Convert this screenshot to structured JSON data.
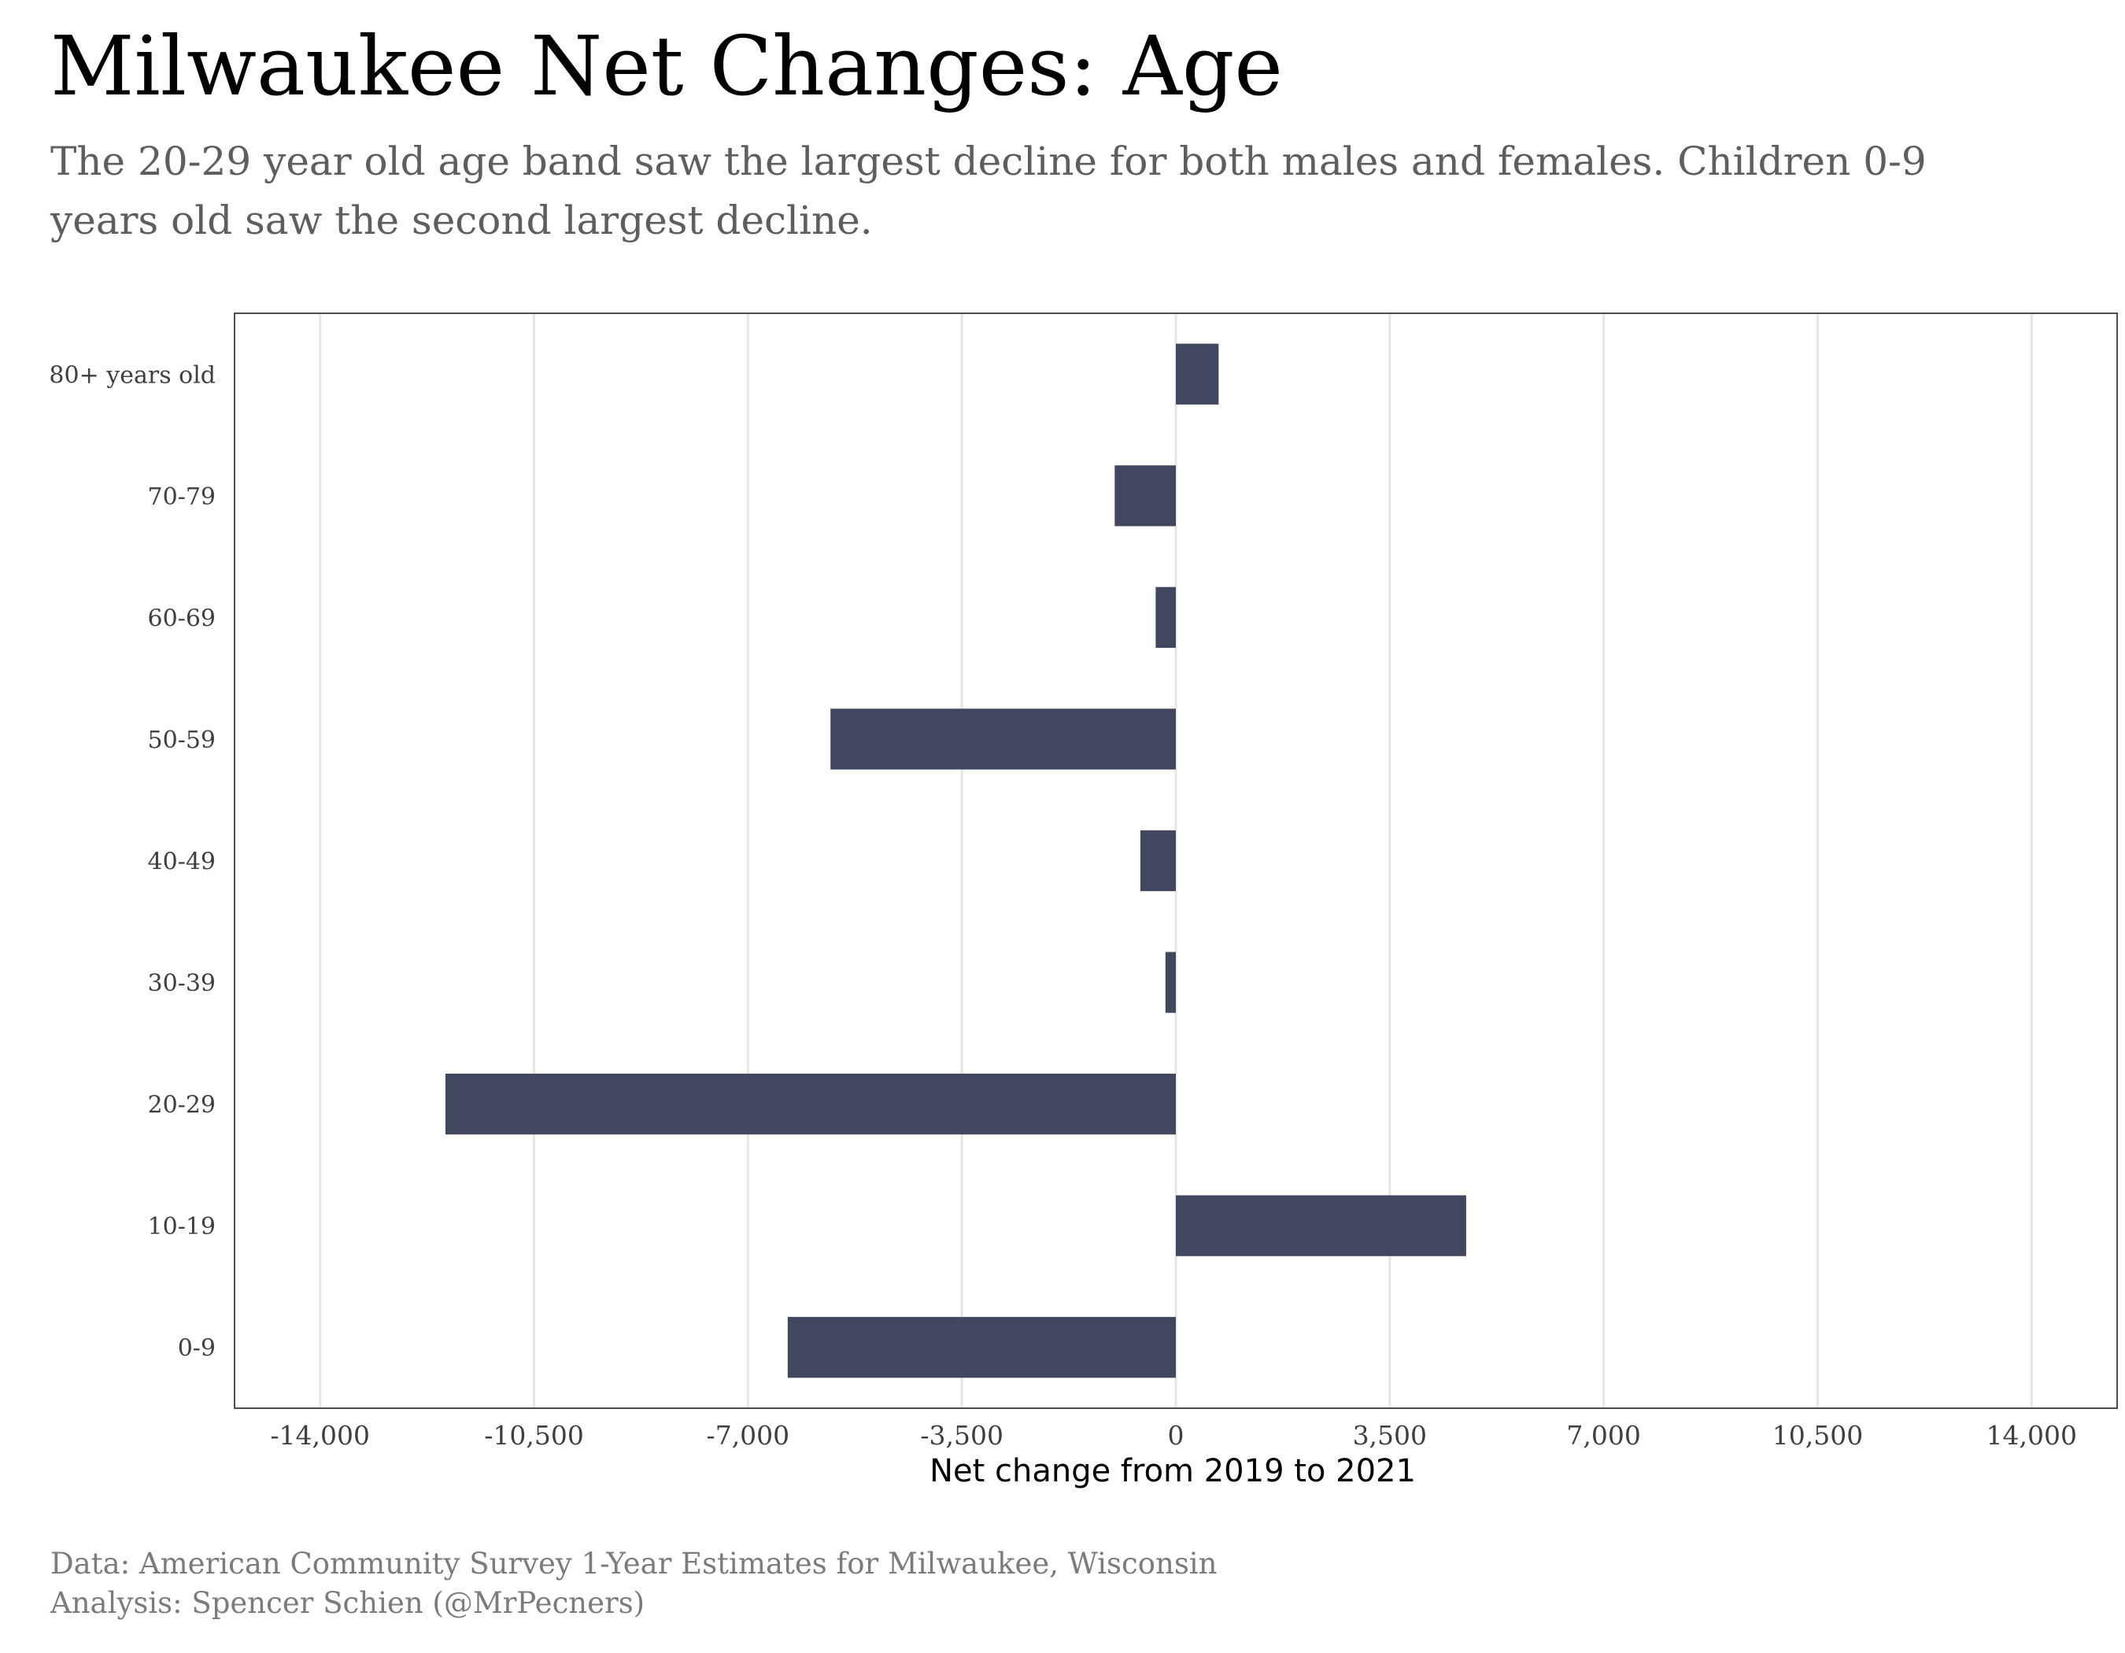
{
  "title": "Milwaukee Net Changes: Age",
  "subtitle": "The 20-29 year old age band saw the largest decline for both males and females. Children 0-9 years old saw the second largest decline.",
  "caption": {
    "line1": "Data: American Community Survey 1-Year Estimates for Milwaukee, Wisconsin",
    "line2": "Analysis: Spencer Schien (@MrPecners)"
  },
  "colors": {
    "bar": "#424760",
    "grid": "#e6e6e6",
    "axis_text": "#3f3f3f",
    "panel_border": "#4d4d4d"
  },
  "chart_data": {
    "type": "bar",
    "orientation": "horizontal",
    "categories": [
      "80+ years old",
      "70-79",
      "60-69",
      "50-59",
      "40-49",
      "30-39",
      "20-29",
      "10-19",
      "0-9"
    ],
    "values": [
      700,
      -1000,
      -330,
      -5650,
      -580,
      -170,
      -11950,
      4750,
      -6350
    ],
    "xlabel": "Net change from 2019 to 2021",
    "ylabel": "",
    "xlim": [
      -15400,
      15400
    ],
    "xticks": [
      -14000,
      -10500,
      -7000,
      -3500,
      0,
      3500,
      7000,
      10500,
      14000
    ],
    "xtick_labels": [
      "-14,000",
      "-10,500",
      "-7,000",
      "-3,500",
      "0",
      "3,500",
      "7,000",
      "10,500",
      "14,000"
    ],
    "grid": "vertical major",
    "legend": "none"
  }
}
